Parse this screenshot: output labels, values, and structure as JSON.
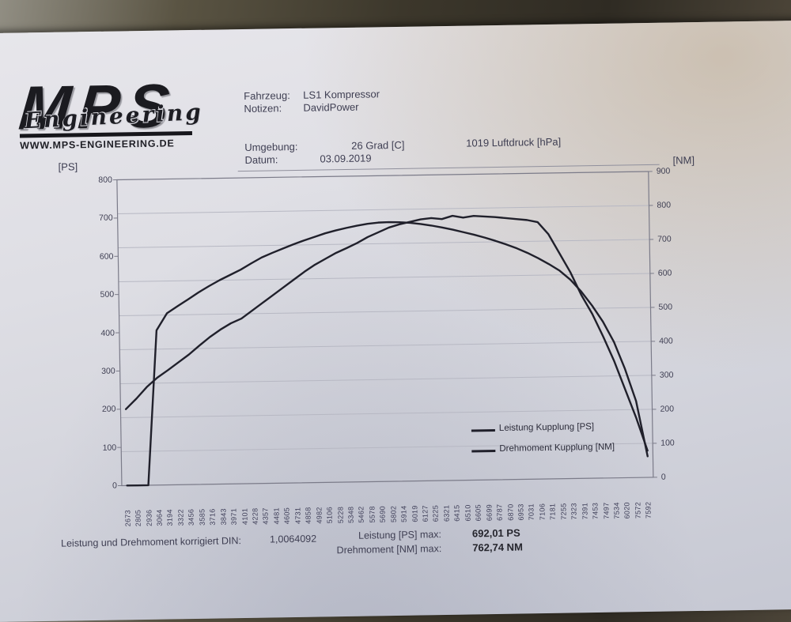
{
  "colors": {
    "paper": "#d6d7de",
    "table": "#3b362c",
    "ink": "#3e3e52",
    "curve": "#20202b",
    "grid": "#b7b8c3",
    "axis": "#7b7b89"
  },
  "logo": {
    "name": "MPS",
    "script": "Engineering",
    "url": "WWW.MPS-ENGINEERING.DE"
  },
  "header": {
    "vehicle_label": "Fahrzeug:",
    "vehicle_value": "LS1 Kompressor",
    "notes_label": "Notizen:",
    "notes_value": "DavidPower",
    "environment_label": "Umgebung:",
    "environment_value": "26 Grad [C]",
    "pressure_value": "1019 Luftdruck [hPa]",
    "date_label": "Datum:",
    "date_value": "03.09.2019"
  },
  "chart_data": {
    "type": "line",
    "title": "",
    "grid": "horizontal",
    "legend_position": "inside-right",
    "left_axis": {
      "unit": "[PS]",
      "min": 0,
      "max": 800,
      "step": 100
    },
    "right_axis": {
      "unit": "[NM]",
      "min": 0,
      "max": 900,
      "step": 100
    },
    "categories": [
      "2673",
      "2805",
      "2936",
      "3064",
      "3194",
      "3322",
      "3456",
      "3585",
      "3716",
      "3843",
      "3971",
      "4101",
      "4228",
      "4357",
      "4481",
      "4605",
      "4731",
      "4858",
      "4982",
      "5106",
      "5228",
      "5348",
      "5462",
      "5578",
      "5690",
      "5802",
      "5914",
      "6019",
      "6127",
      "6225",
      "6321",
      "6415",
      "6510",
      "6605",
      "6699",
      "6787",
      "6870",
      "6953",
      "7031",
      "7106",
      "7181",
      "7255",
      "7323",
      "7391",
      "7453",
      "7497",
      "7534",
      "6020",
      "7572",
      "7592"
    ],
    "series": [
      {
        "name": "Leistung Kupplung [PS]",
        "axis": "left",
        "max_label": "692,01 PS",
        "values": [
          200,
          227,
          257,
          281,
          300,
          320,
          340,
          363,
          385,
          404,
          420,
          432,
          452,
          472,
          492,
          512,
          532,
          552,
          570,
          585,
          600,
          612,
          625,
          640,
          652,
          664,
          672,
          678,
          684,
          687,
          684,
          692,
          687,
          691,
          689,
          687,
          684,
          681,
          678,
          672,
          640,
          590,
          540,
          480,
          430,
          370,
          305,
          230,
          155,
          70
        ]
      },
      {
        "name": "Drehmoment Kupplung [NM]",
        "axis": "right",
        "max_label": "762,74 NM",
        "values": [
          0,
          0,
          0,
          455,
          505,
          525,
          545,
          565,
          583,
          600,
          615,
          630,
          648,
          665,
          678,
          690,
          702,
          713,
          723,
          733,
          741,
          748,
          754,
          759,
          762,
          763,
          762,
          760,
          756,
          751,
          745,
          738,
          730,
          722,
          713,
          703,
          692,
          680,
          666,
          650,
          632,
          612,
          585,
          550,
          508,
          460,
          400,
          320,
          225,
          62
        ]
      }
    ]
  },
  "footer": {
    "din_label": "Leistung und Drehmoment korrigiert DIN:",
    "din_value": "1,0064092",
    "power_max_label": "Leistung [PS] max:",
    "power_max_value": "692,01 PS",
    "torque_max_label": "Drehmoment [NM] max:",
    "torque_max_value": "762,74 NM"
  }
}
